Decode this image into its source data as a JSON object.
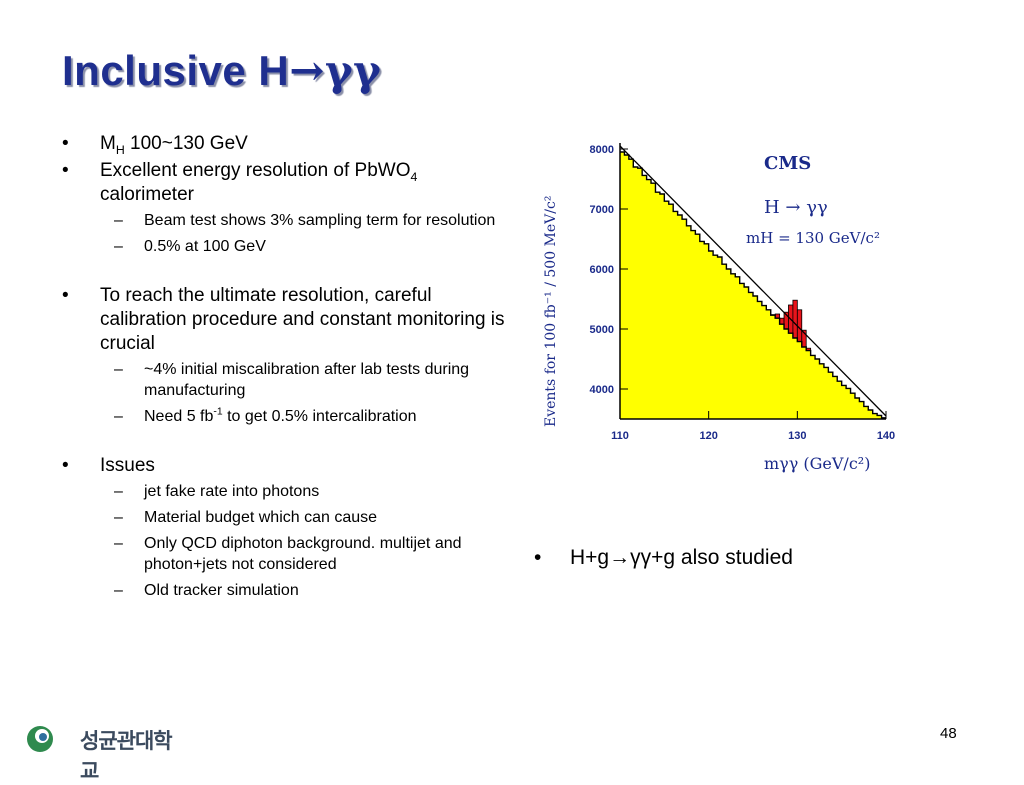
{
  "title": {
    "main": "Inclusive H",
    "greek": "→γγ"
  },
  "left_bullets": {
    "mh": {
      "prefix": "M",
      "sub": "H",
      "suffix": " 100~130 GeV"
    },
    "resolution": {
      "prefix": "Excellent energy resolution of PbWO",
      "sub": "4",
      "line2": "calorimeter"
    },
    "res_sub1": "Beam test shows 3% sampling term for resolution",
    "res_sub2": "0.5% at 100 GeV",
    "calib": "To reach the ultimate resolution, careful calibration procedure and constant monitoring is crucial",
    "calib_sub1": "~4% initial miscalibration after lab tests during manufacturing",
    "calib_sub2": {
      "prefix": "Need 5 fb",
      "sup": "-1",
      "suffix": " to get 0.5% intercalibration"
    },
    "issues": "Issues",
    "issues_sub1": "jet fake rate into photons",
    "issues_sub2": "Material budget which can cause",
    "issues_sub3": "Only QCD diphoton background. multijet and photon+jets not considered",
    "issues_sub4": "Old tracker simulation"
  },
  "right_bullet": "H+g→γγ+g also studied",
  "footer": {
    "page_number": "48",
    "logo_text": "성균관대학교"
  },
  "chart_data": {
    "type": "area",
    "experiment_label": "CMS",
    "process_label": "H → γγ",
    "mass_label": "mH = 130 GeV/c²",
    "xlabel": "mγγ (GeV/c²)",
    "ylabel": "Events for 100 fb⁻¹ / 500 MeV/c²",
    "xlim": [
      110,
      140
    ],
    "ylim": [
      3500,
      8100
    ],
    "xticks": [
      110,
      120,
      130,
      140
    ],
    "yticks": [
      4000,
      5000,
      6000,
      7000,
      8000
    ],
    "background_fit": {
      "x": [
        110,
        140
      ],
      "y": [
        8050,
        3550
      ]
    },
    "background_hist": {
      "x": [
        110.5,
        111,
        111.5,
        112,
        112.5,
        113,
        113.5,
        114,
        114.5,
        115,
        115.5,
        116,
        116.5,
        117,
        117.5,
        118,
        118.5,
        119,
        119.5,
        120,
        120.5,
        121,
        121.5,
        122,
        122.5,
        123,
        123.5,
        124,
        124.5,
        125,
        125.5,
        126,
        126.5,
        127,
        127.5,
        128,
        128.5,
        129,
        129.5,
        130,
        130.5,
        131,
        131.5,
        132,
        132.5,
        133,
        133.5,
        134,
        134.5,
        135,
        135.5,
        136,
        136.5,
        137,
        137.5,
        138,
        138.5,
        139,
        139.5,
        140
      ],
      "y": [
        7950,
        7900,
        7830,
        7700,
        7680,
        7560,
        7490,
        7430,
        7280,
        7250,
        7130,
        7080,
        6960,
        6900,
        6830,
        6720,
        6640,
        6580,
        6460,
        6420,
        6300,
        6230,
        6200,
        6080,
        6000,
        5920,
        5870,
        5760,
        5700,
        5610,
        5550,
        5460,
        5390,
        5320,
        5230,
        5180,
        5080,
        5000,
        4930,
        4850,
        4790,
        4700,
        4640,
        4560,
        4500,
        4420,
        4360,
        4280,
        4210,
        4130,
        4060,
        4010,
        3930,
        3850,
        3790,
        3710,
        3650,
        3590,
        3560,
        3520
      ]
    },
    "signal_hist": {
      "x": [
        127.5,
        128,
        128.5,
        129,
        129.5,
        130,
        130.5,
        131,
        131.5
      ],
      "y": [
        5240,
        5250,
        5180,
        5280,
        5400,
        5480,
        5320,
        4980,
        4680
      ]
    },
    "colors": {
      "background": "#ffff00",
      "signal": "#e8141b",
      "line": "#000000",
      "text": "#1a2a8a"
    }
  }
}
